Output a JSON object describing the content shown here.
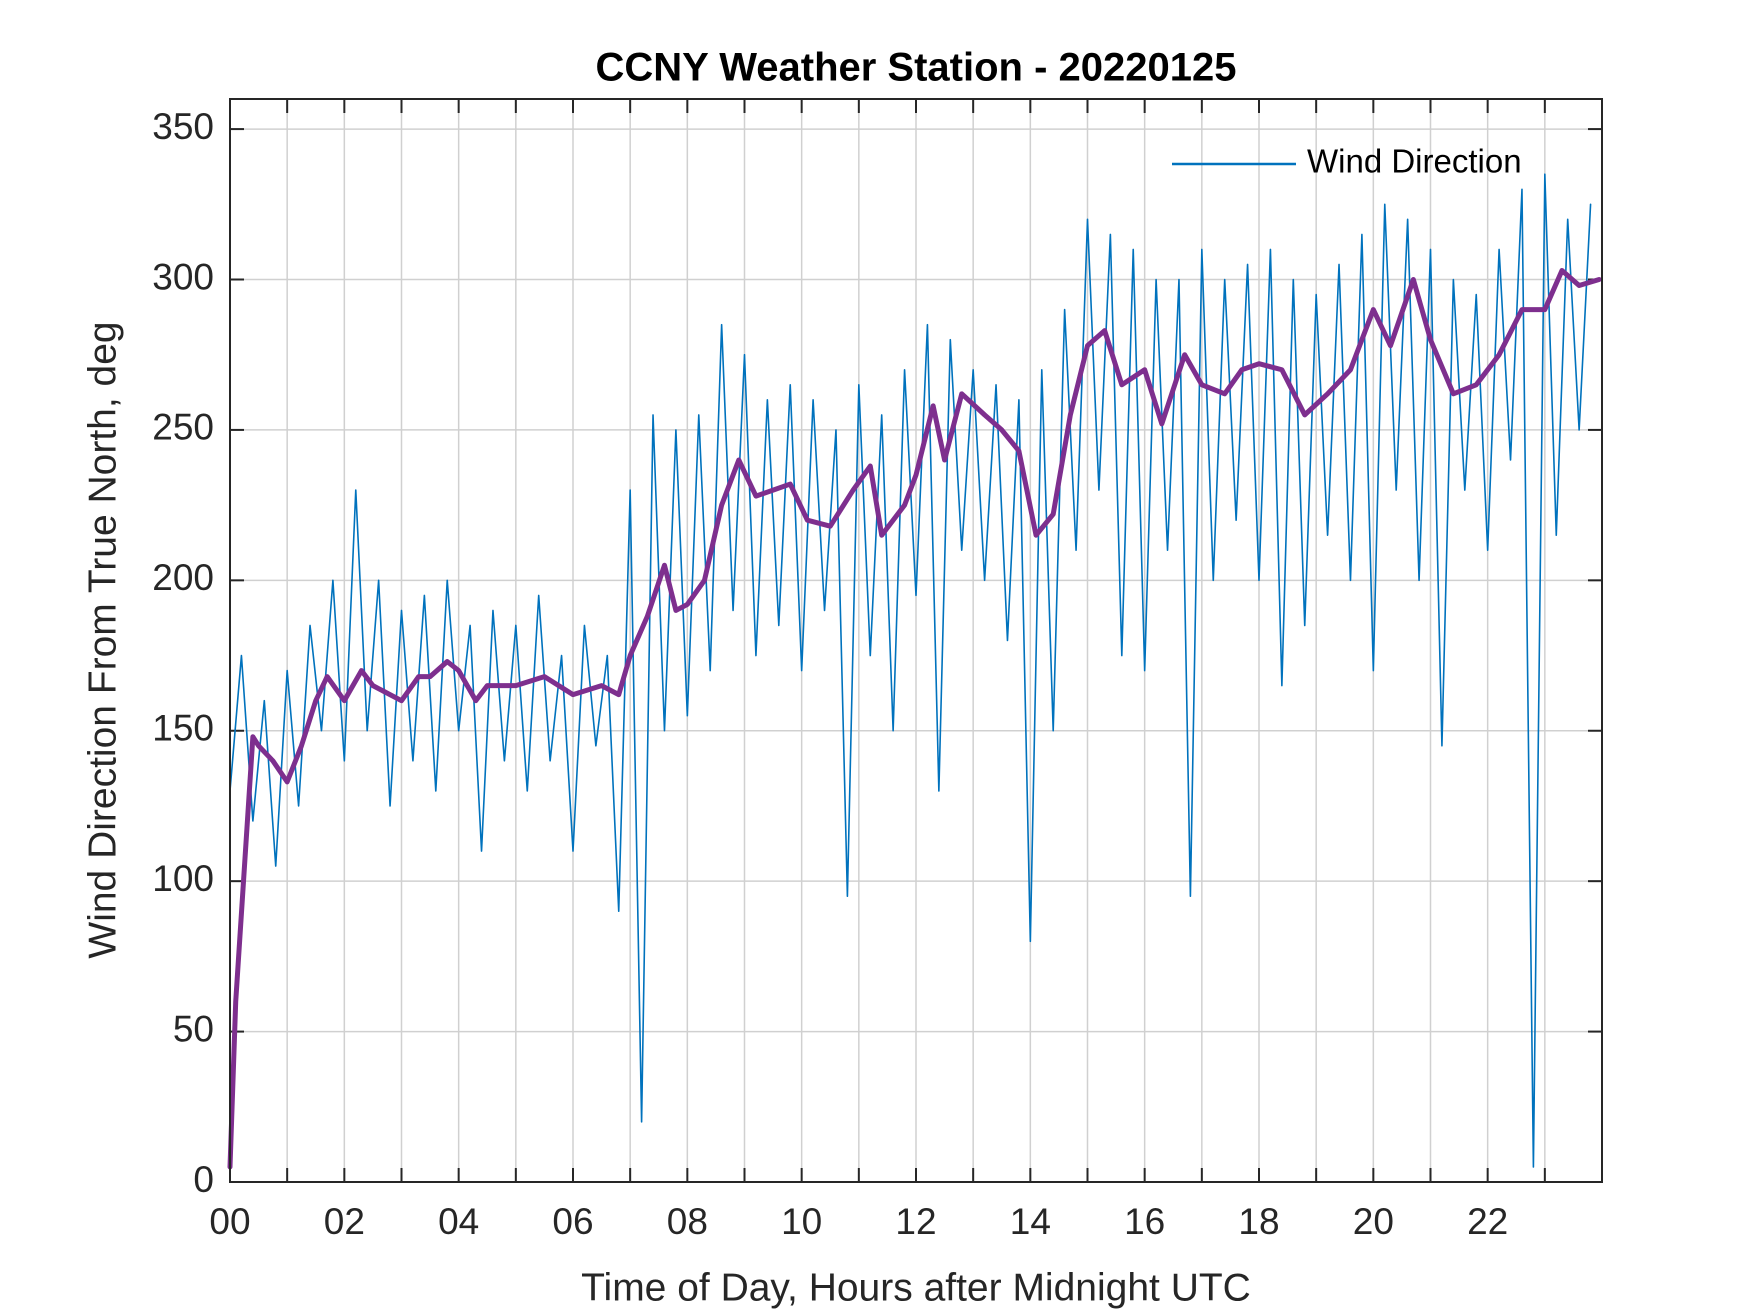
{
  "chart_data": {
    "type": "line",
    "title": "CCNY Weather Station - 20220125",
    "x_label": "Time of Day, Hours after Midnight UTC",
    "y_label": "Wind Direction From True North, deg",
    "xlim": [
      0,
      24
    ],
    "ylim": [
      0,
      360
    ],
    "xticks": [
      {
        "value": 0,
        "label": "00"
      },
      {
        "value": 2,
        "label": "02"
      },
      {
        "value": 4,
        "label": "04"
      },
      {
        "value": 6,
        "label": "06"
      },
      {
        "value": 8,
        "label": "08"
      },
      {
        "value": 10,
        "label": "10"
      },
      {
        "value": 12,
        "label": "12"
      },
      {
        "value": 14,
        "label": "14"
      },
      {
        "value": 16,
        "label": "16"
      },
      {
        "value": 18,
        "label": "18"
      },
      {
        "value": 20,
        "label": "20"
      },
      {
        "value": 22,
        "label": "22"
      }
    ],
    "xminorticks": [
      1,
      3,
      5,
      7,
      9,
      11,
      13,
      15,
      17,
      19,
      21,
      23
    ],
    "yticks": [
      0,
      50,
      100,
      150,
      200,
      250,
      300,
      350
    ],
    "grid": true,
    "legend": "northeast",
    "series": [
      {
        "name": "Wind Direction",
        "color": "#0072BD",
        "x": [
          0.0,
          0.2,
          0.4,
          0.6,
          0.8,
          1.0,
          1.2,
          1.4,
          1.6,
          1.8,
          2.0,
          2.2,
          2.4,
          2.6,
          2.8,
          3.0,
          3.2,
          3.4,
          3.6,
          3.8,
          4.0,
          4.2,
          4.4,
          4.6,
          4.8,
          5.0,
          5.2,
          5.4,
          5.6,
          5.8,
          6.0,
          6.2,
          6.4,
          6.6,
          6.8,
          7.0,
          7.2,
          7.4,
          7.6,
          7.8,
          8.0,
          8.2,
          8.4,
          8.6,
          8.8,
          9.0,
          9.2,
          9.4,
          9.6,
          9.8,
          10.0,
          10.2,
          10.4,
          10.6,
          10.8,
          11.0,
          11.2,
          11.4,
          11.6,
          11.8,
          12.0,
          12.2,
          12.4,
          12.6,
          12.8,
          13.0,
          13.2,
          13.4,
          13.6,
          13.8,
          14.0,
          14.2,
          14.4,
          14.6,
          14.8,
          15.0,
          15.2,
          15.4,
          15.6,
          15.8,
          16.0,
          16.2,
          16.4,
          16.6,
          16.8,
          17.0,
          17.2,
          17.4,
          17.6,
          17.8,
          18.0,
          18.2,
          18.4,
          18.6,
          18.8,
          19.0,
          19.2,
          19.4,
          19.6,
          19.8,
          20.0,
          20.2,
          20.4,
          20.6,
          20.8,
          21.0,
          21.2,
          21.4,
          21.6,
          21.8,
          22.0,
          22.2,
          22.4,
          22.6,
          22.8,
          23.0,
          23.2,
          23.4,
          23.6,
          23.8
        ],
        "values": [
          130,
          175,
          120,
          160,
          105,
          170,
          125,
          185,
          150,
          200,
          140,
          230,
          150,
          200,
          125,
          190,
          140,
          195,
          130,
          200,
          150,
          185,
          110,
          190,
          140,
          185,
          130,
          195,
          140,
          175,
          110,
          185,
          145,
          175,
          90,
          230,
          20,
          255,
          150,
          250,
          155,
          255,
          170,
          285,
          190,
          275,
          175,
          260,
          185,
          265,
          170,
          260,
          190,
          250,
          95,
          265,
          175,
          255,
          150,
          270,
          195,
          285,
          130,
          280,
          210,
          270,
          200,
          265,
          180,
          260,
          80,
          270,
          150,
          290,
          210,
          320,
          230,
          315,
          175,
          310,
          170,
          300,
          210,
          300,
          95,
          310,
          200,
          300,
          220,
          305,
          200,
          310,
          165,
          300,
          185,
          295,
          215,
          305,
          200,
          315,
          170,
          325,
          230,
          320,
          200,
          310,
          145,
          300,
          230,
          295,
          210,
          310,
          240,
          330,
          5,
          335,
          215,
          320,
          250,
          325
        ]
      },
      {
        "color": "#7E2F8E",
        "x": [
          0.0,
          0.1,
          0.4,
          0.5,
          0.75,
          1.0,
          1.25,
          1.5,
          1.7,
          2.0,
          2.3,
          2.5,
          3.0,
          3.3,
          3.5,
          3.8,
          4.0,
          4.3,
          4.5,
          5.0,
          5.5,
          6.0,
          6.5,
          6.8,
          7.0,
          7.3,
          7.6,
          7.8,
          8.0,
          8.3,
          8.6,
          8.9,
          9.2,
          9.5,
          9.8,
          10.1,
          10.5,
          10.9,
          11.2,
          11.4,
          11.8,
          12.0,
          12.3,
          12.5,
          12.8,
          13.2,
          13.5,
          13.8,
          14.1,
          14.4,
          14.7,
          15.0,
          15.3,
          15.6,
          16.0,
          16.3,
          16.7,
          17.0,
          17.4,
          17.7,
          18.0,
          18.4,
          18.8,
          19.2,
          19.6,
          20.0,
          20.3,
          20.7,
          21.0,
          21.4,
          21.8,
          22.2,
          22.6,
          23.0,
          23.3,
          23.6,
          23.95
        ],
        "values": [
          5,
          60,
          148,
          145,
          140,
          133,
          145,
          160,
          168,
          160,
          170,
          165,
          160,
          168,
          168,
          173,
          170,
          160,
          165,
          165,
          168,
          162,
          165,
          162,
          175,
          188,
          205,
          190,
          192,
          200,
          225,
          240,
          228,
          230,
          232,
          220,
          218,
          230,
          238,
          215,
          225,
          235,
          258,
          240,
          262,
          255,
          250,
          243,
          215,
          222,
          255,
          278,
          283,
          265,
          270,
          252,
          275,
          265,
          262,
          270,
          272,
          270,
          255,
          262,
          270,
          290,
          278,
          300,
          280,
          262,
          265,
          275,
          290,
          290,
          303,
          298,
          300
        ]
      }
    ]
  }
}
